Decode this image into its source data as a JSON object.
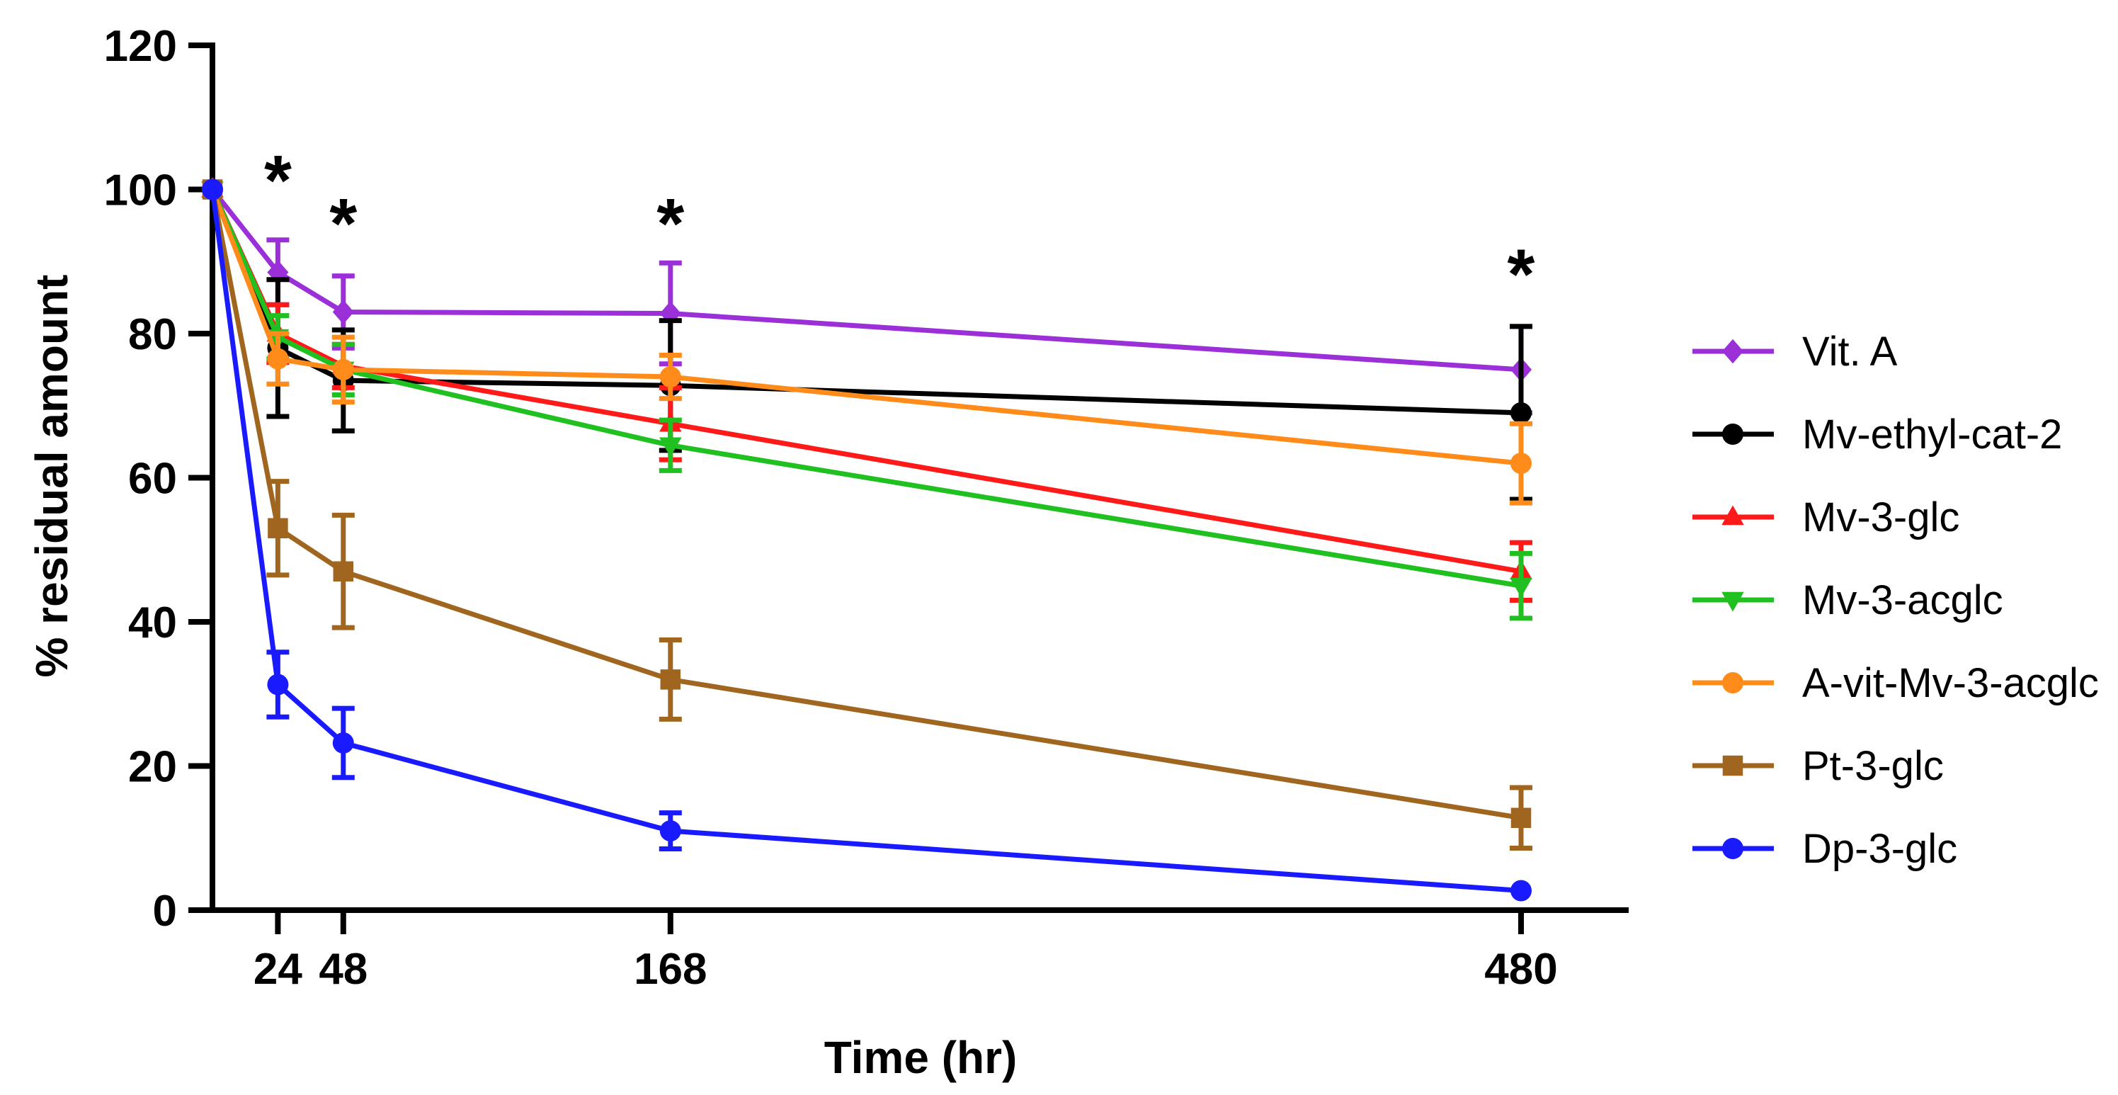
{
  "chart_data": {
    "type": "line",
    "title": "",
    "xlabel": "Time (hr)",
    "ylabel": "% residual amount",
    "xlim": [
      0,
      500
    ],
    "ylim": [
      0,
      120
    ],
    "x_ticks": [
      24,
      48,
      168,
      480
    ],
    "x_tick_labels": [
      "24",
      "48",
      "168",
      "480"
    ],
    "y_ticks": [
      0,
      20,
      40,
      60,
      80,
      100,
      120
    ],
    "y_tick_labels": [
      "0",
      "20",
      "40",
      "60",
      "80",
      "100",
      "120"
    ],
    "grid": false,
    "legend_position": "right",
    "x": [
      0,
      24,
      48,
      168,
      480
    ],
    "series": [
      {
        "name": "Vit. A",
        "color": "#9b30d9",
        "marker": "diamond",
        "values": [
          100,
          88.5,
          83,
          82.8,
          75
        ],
        "errors": [
          0,
          4.5,
          5,
          7,
          6
        ]
      },
      {
        "name": "Mv-ethyl-cat-2",
        "color": "#000000",
        "marker": "circle",
        "values": [
          100,
          78,
          73.5,
          72.8,
          69
        ],
        "errors": [
          0,
          9.5,
          7,
          9,
          12
        ]
      },
      {
        "name": "Mv-3-glc",
        "color": "#ff1a1a",
        "marker": "triangle-up",
        "values": [
          100,
          80,
          75.5,
          67.5,
          47
        ],
        "errors": [
          0,
          4,
          3,
          5,
          4
        ]
      },
      {
        "name": "Mv-3-acglc",
        "color": "#1fc01f",
        "marker": "triangle-down",
        "values": [
          100,
          79.5,
          75,
          64.5,
          45
        ],
        "errors": [
          0,
          3,
          3.5,
          3.5,
          4.5
        ]
      },
      {
        "name": "A-vit-Mv-3-acglc",
        "color": "#ff8c1a",
        "marker": "circle",
        "values": [
          100,
          76.5,
          75,
          74,
          62
        ],
        "errors": [
          0,
          3.5,
          4.5,
          3,
          5.5
        ]
      },
      {
        "name": "Pt-3-glc",
        "color": "#a0661f",
        "marker": "square",
        "values": [
          100,
          53,
          47,
          32,
          12.8
        ],
        "errors": [
          0,
          6.5,
          7.8,
          5.5,
          4.2
        ]
      },
      {
        "name": "Dp-3-glc",
        "color": "#1a1aff",
        "marker": "circle",
        "values": [
          100,
          31.3,
          23.2,
          11,
          2.7
        ],
        "errors": [
          0,
          4.5,
          4.8,
          2.5,
          0
        ]
      }
    ],
    "annotations": [
      {
        "text": "*",
        "x": 24,
        "y": 103
      },
      {
        "text": "*",
        "x": 48,
        "y": 97
      },
      {
        "text": "*",
        "x": 168,
        "y": 97
      },
      {
        "text": "*",
        "x": 480,
        "y": 90
      }
    ]
  }
}
